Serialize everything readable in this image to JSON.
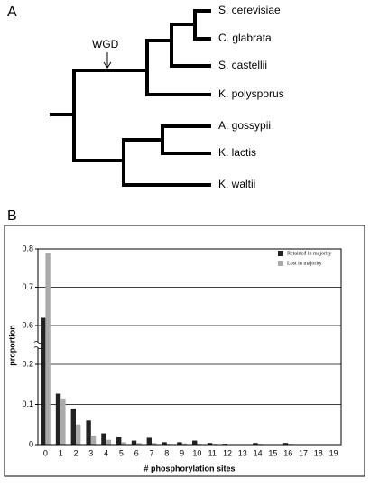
{
  "panel_a": {
    "label": "A",
    "annotation": "WGD",
    "leaves": [
      "S. cerevisiae",
      "C. glabrata",
      "S. castellii",
      "K. polysporus",
      "A. gossypii",
      "K. lactis",
      "K. waltii"
    ]
  },
  "chart_data": {
    "type": "bar",
    "panel_label": "B",
    "x_label": "# phosphorylation sites",
    "y_label": "proportion",
    "categories": [
      "0",
      "1",
      "2",
      "3",
      "4",
      "5",
      "6",
      "7",
      "8",
      "9",
      "10",
      "11",
      "12",
      "13",
      "14",
      "15",
      "16",
      "17",
      "18",
      "19"
    ],
    "series": [
      {
        "name": "Retained in majority",
        "color": "#222222",
        "values": [
          0.62,
          0.127,
          0.09,
          0.06,
          0.028,
          0.018,
          0.01,
          0.017,
          0.006,
          0.006,
          0.01,
          0.004,
          0.002,
          0.001,
          0.004,
          0.001,
          0.004,
          0.001,
          0,
          0
        ]
      },
      {
        "name": "Lost in majority",
        "color": "#aaaaaa",
        "values": [
          0.79,
          0.115,
          0.05,
          0.022,
          0.012,
          0.006,
          0.004,
          0.004,
          0.002,
          0.003,
          0.002,
          0.002,
          0.001,
          0.001,
          0.002,
          0,
          0.002,
          0,
          0,
          0
        ]
      }
    ],
    "ylim": [
      0,
      0.8
    ],
    "y_break": [
      0.2,
      0.6
    ],
    "yticks": [
      0,
      0.1,
      0.2,
      0.6,
      0.7,
      0.8
    ],
    "grid": true,
    "legend": "top-right"
  }
}
